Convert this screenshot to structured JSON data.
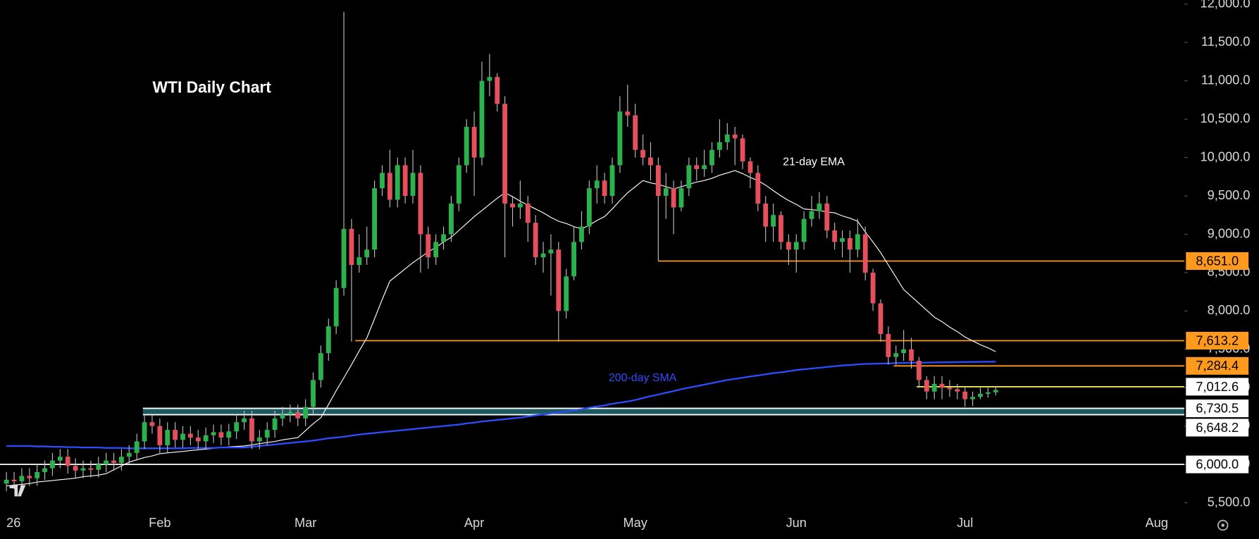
{
  "chart_data": {
    "type": "candlestick",
    "title": "WTI Daily Chart",
    "up_color": "#2bb24c",
    "down_color": "#e5505c",
    "wick_color": "#bdbdbd",
    "open": [
      5750,
      5800,
      5780,
      5850,
      5820,
      5900,
      5950,
      6050,
      6100,
      5980,
      5920,
      5950,
      5930,
      6000,
      6050,
      6020,
      6100,
      6150,
      6300,
      6550,
      6500,
      6250,
      6450,
      6320,
      6400,
      6350,
      6300,
      6380,
      6420,
      6350,
      6430,
      6550,
      6600,
      6300,
      6350,
      6450,
      6600,
      6650,
      6680,
      6600,
      6750,
      7100,
      7450,
      7800,
      8300,
      9070,
      8600,
      8700,
      8800,
      9600,
      9800,
      9450,
      9900,
      9500,
      9800,
      9000,
      8700,
      8900,
      9000,
      9400,
      9900,
      10400,
      10000,
      11000,
      11050,
      10700,
      9400,
      9350,
      9400,
      9150,
      8700,
      8750,
      8800,
      8000,
      8450,
      8900,
      9100,
      9600,
      9700,
      9500,
      9900,
      10600,
      10550,
      10100,
      10000,
      9900,
      9500,
      9600,
      9350,
      9600,
      9900,
      9850,
      9900,
      10100,
      10200,
      10300,
      10250,
      9950,
      9800,
      9400,
      9100,
      9250,
      8900,
      8800,
      8900,
      9200,
      9300,
      9400,
      9050,
      8900,
      8950,
      8800,
      9000,
      8500,
      8100,
      7700,
      7400,
      7450,
      7500,
      7350,
      7100,
      6950,
      7050,
      7000,
      6980,
      6950,
      6850,
      6880,
      6920,
      6940
    ],
    "high": [
      5900,
      5900,
      5950,
      5950,
      6000,
      6050,
      6150,
      6200,
      6200,
      6080,
      6050,
      6050,
      6100,
      6150,
      6150,
      6200,
      6250,
      6400,
      6650,
      6650,
      6600,
      6550,
      6550,
      6500,
      6500,
      6450,
      6480,
      6520,
      6520,
      6530,
      6650,
      6700,
      6700,
      6450,
      6550,
      6700,
      6750,
      6780,
      6780,
      6850,
      7200,
      7550,
      7900,
      8400,
      11900,
      9200,
      9000,
      9100,
      9700,
      9900,
      10100,
      10000,
      10000,
      10100,
      9900,
      9100,
      9000,
      9100,
      9500,
      10000,
      10500,
      10600,
      11250,
      11350,
      11100,
      10800,
      9500,
      9700,
      9500,
      9250,
      8900,
      9000,
      8900,
      8550,
      9100,
      9300,
      9700,
      9900,
      9800,
      10000,
      10800,
      10950,
      10700,
      10300,
      10200,
      10000,
      9800,
      9700,
      9700,
      10000,
      10000,
      10100,
      10200,
      10500,
      10450,
      10400,
      10300,
      10000,
      9900,
      9500,
      9400,
      9300,
      9000,
      9000,
      9300,
      9500,
      9550,
      9500,
      9150,
      9050,
      9050,
      9200,
      9100,
      8550,
      8150,
      7800,
      7550,
      7750,
      7650,
      7400,
      7150,
      7150,
      7150,
      7100,
      7050,
      7000,
      6950,
      7000,
      7000,
      7020
    ],
    "low": [
      5650,
      5680,
      5680,
      5720,
      5720,
      5800,
      5850,
      5950,
      5880,
      5820,
      5820,
      5830,
      5830,
      5900,
      5920,
      5920,
      6000,
      6050,
      6200,
      6400,
      6150,
      6150,
      6220,
      6220,
      6250,
      6200,
      6200,
      6280,
      6250,
      6250,
      6330,
      6450,
      6200,
      6200,
      6250,
      6350,
      6500,
      6550,
      6500,
      6500,
      6650,
      7000,
      7350,
      7700,
      8200,
      7600,
      8500,
      8600,
      8700,
      9500,
      9350,
      9350,
      9400,
      9400,
      8500,
      8550,
      8600,
      8800,
      8900,
      9300,
      9800,
      9500,
      9900,
      10800,
      10600,
      8700,
      9100,
      9200,
      8900,
      8600,
      8500,
      8200,
      7600,
      7900,
      8400,
      8800,
      9000,
      9400,
      9400,
      9400,
      9800,
      10400,
      10000,
      9900,
      9700,
      8650,
      9200,
      9000,
      9300,
      9500,
      9700,
      9750,
      9800,
      10000,
      10100,
      9900,
      9850,
      9600,
      9300,
      8900,
      8900,
      8800,
      8600,
      8500,
      8800,
      9100,
      9200,
      8950,
      8800,
      8700,
      8500,
      8700,
      8400,
      8000,
      7600,
      7300,
      7300,
      7350,
      7250,
      7000,
      6850,
      6850,
      6850,
      6880,
      6850,
      6750,
      6760,
      6850,
      6870,
      6900
    ],
    "close": [
      5800,
      5780,
      5850,
      5820,
      5900,
      5950,
      6050,
      6100,
      5980,
      5920,
      5950,
      5930,
      6000,
      6050,
      6020,
      6100,
      6150,
      6300,
      6550,
      6500,
      6250,
      6450,
      6320,
      6400,
      6350,
      6300,
      6380,
      6420,
      6350,
      6430,
      6550,
      6600,
      6300,
      6350,
      6450,
      6600,
      6650,
      6680,
      6600,
      6750,
      7100,
      7450,
      7800,
      8300,
      9070,
      8600,
      8700,
      8800,
      9600,
      9800,
      9450,
      9900,
      9500,
      9800,
      9000,
      8700,
      8900,
      9000,
      9400,
      9900,
      10400,
      10000,
      11000,
      11050,
      10700,
      9400,
      9350,
      9400,
      9150,
      8700,
      8750,
      8800,
      8000,
      8450,
      8900,
      9100,
      9600,
      9700,
      9500,
      9900,
      10600,
      10550,
      10100,
      10000,
      9900,
      9500,
      9600,
      9350,
      9600,
      9900,
      9850,
      9900,
      10100,
      10200,
      10300,
      10250,
      9950,
      9800,
      9400,
      9100,
      9250,
      8900,
      8800,
      8900,
      9200,
      9300,
      9400,
      9050,
      8900,
      8950,
      8800,
      9000,
      8500,
      8100,
      7700,
      7400,
      7450,
      7500,
      7350,
      7100,
      6950,
      7050,
      7000,
      6980,
      6950,
      6850,
      6880,
      6920,
      6940,
      6970
    ],
    "series": [
      {
        "name": "21-day EMA",
        "color": "#ffffff",
        "values": [
          5720,
          5730,
          5740,
          5750,
          5770,
          5780,
          5790,
          5800,
          5810,
          5820,
          5840,
          5850,
          5860,
          5880,
          5930,
          5980,
          6030,
          6060,
          6090,
          6110,
          6140,
          6150,
          6160,
          6170,
          6180,
          6190,
          6200,
          6210,
          6220,
          6230,
          6235,
          6240,
          6255,
          6270,
          6285,
          6300,
          6320,
          6335,
          6350,
          6440,
          6530,
          6610,
          6780,
          6960,
          7130,
          7300,
          7480,
          7650,
          7900,
          8150,
          8390,
          8470,
          8550,
          8630,
          8700,
          8770,
          8830,
          8900,
          8960,
          9050,
          9140,
          9230,
          9310,
          9390,
          9470,
          9540,
          9490,
          9430,
          9380,
          9330,
          9280,
          9220,
          9170,
          9140,
          9100,
          9070,
          9120,
          9180,
          9230,
          9330,
          9440,
          9540,
          9620,
          9700,
          9670,
          9650,
          9620,
          9590,
          9620,
          9650,
          9680,
          9700,
          9730,
          9770,
          9800,
          9830,
          9790,
          9740,
          9700,
          9640,
          9570,
          9500,
          9440,
          9390,
          9330,
          9320,
          9310,
          9290,
          9280,
          9240,
          9210,
          9170,
          9030,
          8900,
          8760,
          8600,
          8440,
          8280,
          8190,
          8100,
          8010,
          7920,
          7860,
          7790,
          7730,
          7660,
          7610,
          7560,
          7520,
          7470
        ]
      },
      {
        "name": "200-day SMA",
        "color": "#2f4dff",
        "values": [
          6240,
          6240,
          6240,
          6240,
          6235,
          6235,
          6230,
          6230,
          6225,
          6225,
          6220,
          6220,
          6220,
          6215,
          6215,
          6215,
          6210,
          6210,
          6210,
          6210,
          6210,
          6210,
          6210,
          6210,
          6215,
          6215,
          6215,
          6215,
          6220,
          6220,
          6220,
          6220,
          6230,
          6240,
          6250,
          6260,
          6270,
          6280,
          6290,
          6300,
          6310,
          6325,
          6340,
          6350,
          6360,
          6375,
          6390,
          6400,
          6410,
          6420,
          6430,
          6440,
          6450,
          6460,
          6470,
          6480,
          6490,
          6500,
          6510,
          6520,
          6535,
          6545,
          6560,
          6570,
          6580,
          6590,
          6600,
          6610,
          6625,
          6640,
          6650,
          6665,
          6680,
          6690,
          6705,
          6720,
          6740,
          6755,
          6770,
          6790,
          6805,
          6820,
          6840,
          6865,
          6890,
          6910,
          6935,
          6955,
          6980,
          7000,
          7020,
          7040,
          7060,
          7080,
          7100,
          7115,
          7130,
          7145,
          7160,
          7175,
          7190,
          7200,
          7215,
          7230,
          7240,
          7250,
          7260,
          7270,
          7280,
          7290,
          7295,
          7305,
          7310,
          7312,
          7315,
          7317,
          7320,
          7322,
          7325,
          7327,
          7328,
          7330,
          7331,
          7332,
          7334,
          7335,
          7336,
          7337,
          7338,
          7340
        ]
      }
    ],
    "levels": [
      {
        "value": 8651.0,
        "label": "8,651.0",
        "x_start": 85,
        "color": "#ff9a1f",
        "box": "#ff9a1f"
      },
      {
        "value": 7613.2,
        "label": "7,613.2",
        "x_start": 45.5,
        "color": "#ff9a1f",
        "box": "#ff9a1f"
      },
      {
        "value": 7284.4,
        "label": "7,284.4",
        "x_start": 115.7,
        "color": "#ff9a1f",
        "box": "#ff9a1f"
      },
      {
        "value": 7012.6,
        "label": "7,012.6",
        "x_start": 118.7,
        "color": "#fff45a",
        "box": "#ffffff"
      },
      {
        "value": 6730.5,
        "label": "6,730.5",
        "x_start": 17.8,
        "color": "#ffffff",
        "box": "#ffffff",
        "zone_color": "#1d5961"
      },
      {
        "value": 6648.2,
        "label": "6,648.2",
        "x_start": 17.8,
        "color": "#ffffff",
        "box": "#ffffff"
      },
      {
        "value": 6000.0,
        "label": "6,000.0",
        "x_start": -0.84,
        "color": "#ffffff",
        "box": "#ffffff"
      }
    ],
    "xlim": [
      -0.84,
      153.6
    ],
    "xticks": [
      {
        "value": 0,
        "label": "26"
      },
      {
        "value": 20,
        "label": "Feb"
      },
      {
        "value": 39,
        "label": "Mar"
      },
      {
        "value": 61,
        "label": "Apr"
      },
      {
        "value": 82,
        "label": "May"
      },
      {
        "value": 103,
        "label": "Jun"
      },
      {
        "value": 125,
        "label": "Jul"
      },
      {
        "value": 150,
        "label": "Aug"
      }
    ],
    "ylim": [
      5500,
      12000
    ],
    "yticks": [
      {
        "value": 5500,
        "label": "5,500.0"
      },
      {
        "value": 6000,
        "label": "6,000.0"
      },
      {
        "value": 6500,
        "label": "6,500.0"
      },
      {
        "value": 7000,
        "label": "7,000.0"
      },
      {
        "value": 7500,
        "label": "7,500.0"
      },
      {
        "value": 8000,
        "label": "8,000.0"
      },
      {
        "value": 8500,
        "label": "8,500.0"
      },
      {
        "value": 9000,
        "label": "9,000.0"
      },
      {
        "value": 9500,
        "label": "9,500.0"
      },
      {
        "value": 10000,
        "label": "10,000.0"
      },
      {
        "value": 10500,
        "label": "10,500.0"
      },
      {
        "value": 11000,
        "label": "11,000.0"
      },
      {
        "value": 11500,
        "label": "11,500.0"
      },
      {
        "value": 12000,
        "label": "12,000.0"
      }
    ]
  }
}
